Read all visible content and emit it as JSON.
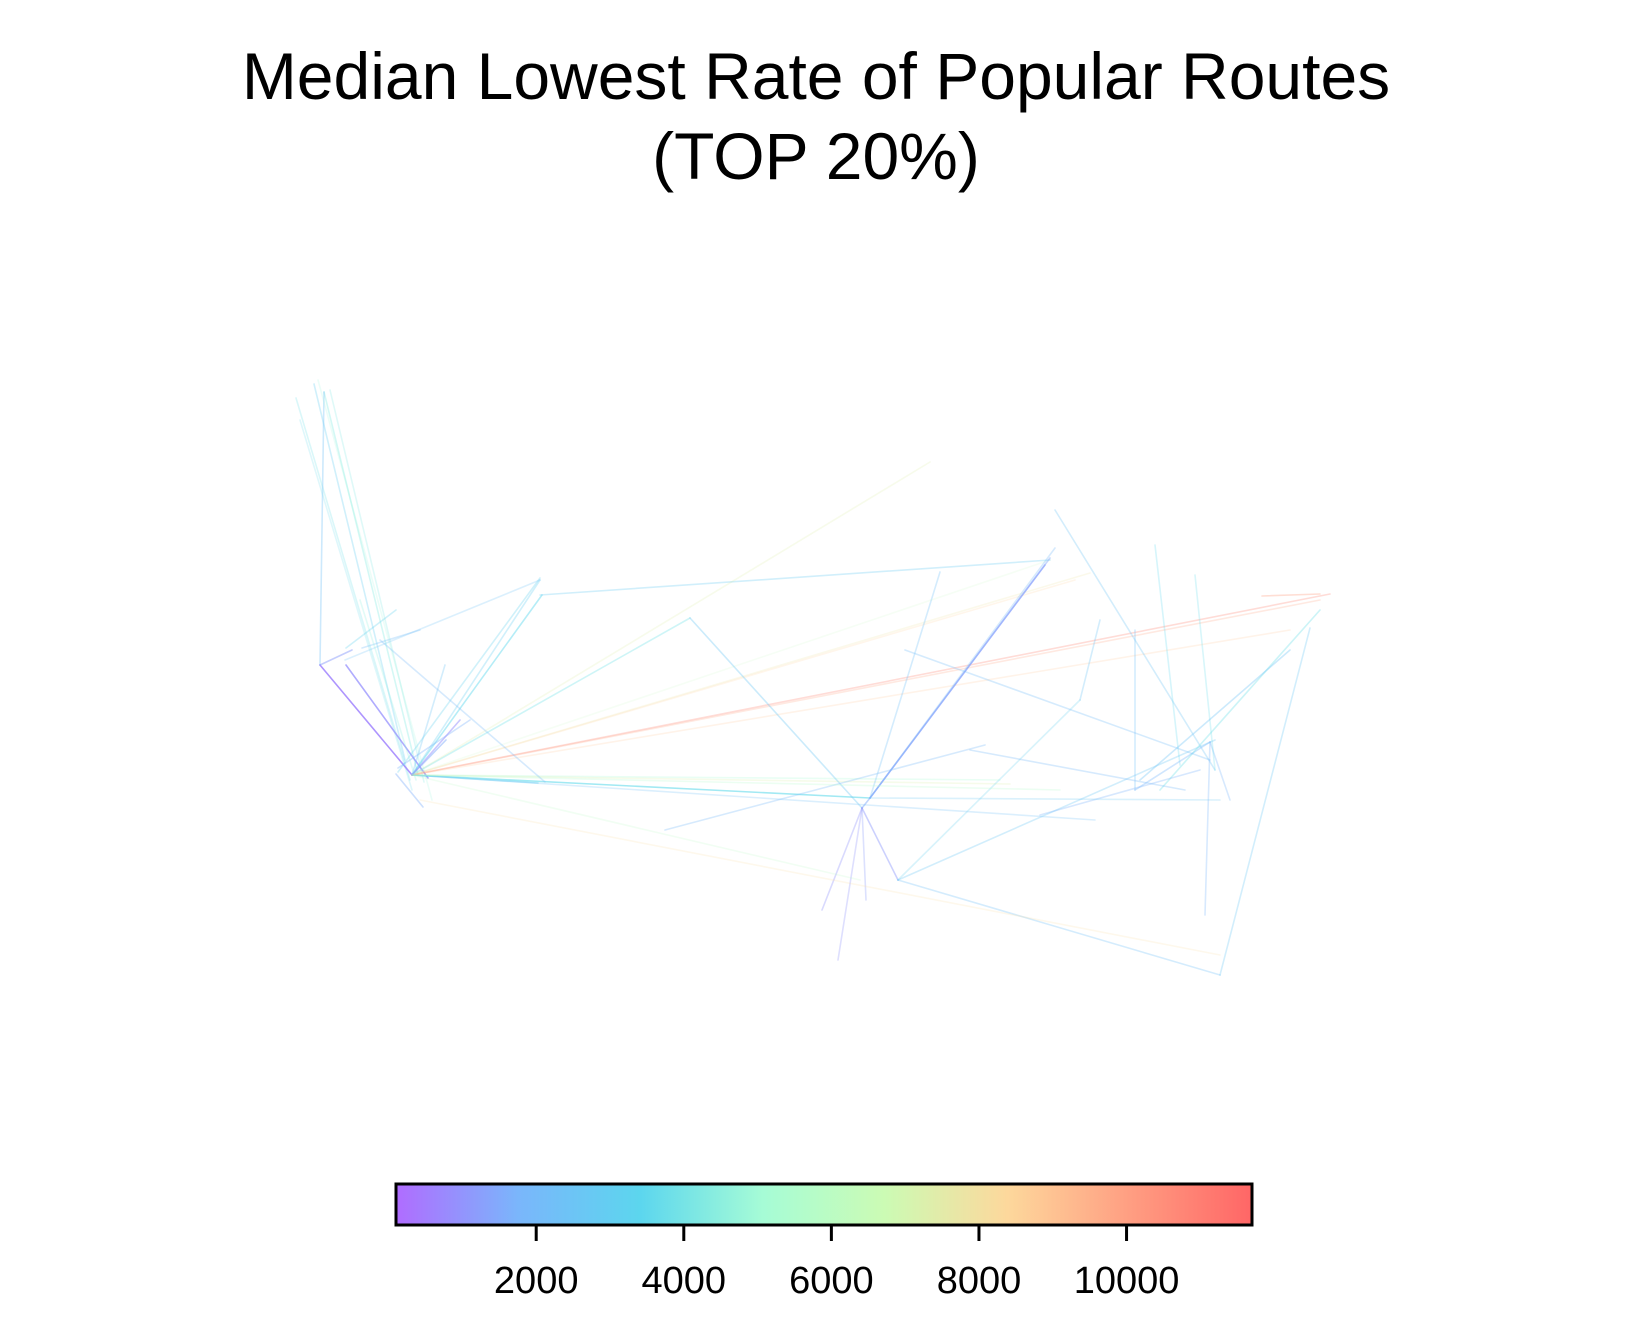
{
  "chart_data": {
    "type": "route-map",
    "title_lines": [
      "Median Lowest Rate of Popular Routes",
      "(TOP 20%)"
    ],
    "xlabel": "",
    "ylabel": "",
    "grid": false,
    "colormap": "rainbow",
    "colors": {
      "stops": [
        "#b06cff",
        "#7ab6fb",
        "#5cd6ee",
        "#a6fcd6",
        "#ccfbb4",
        "#fdd89c",
        "#ff9e82",
        "#ff6666"
      ],
      "frame": "#000000"
    },
    "colorbar": {
      "orientation": "horizontal",
      "placement": "bottom",
      "range": [
        100,
        11700
      ],
      "ticks": [
        2000,
        4000,
        6000,
        8000,
        10000
      ],
      "tick_labels": [
        "2000",
        "4000",
        "6000",
        "8000",
        "10000"
      ]
    }
  }
}
